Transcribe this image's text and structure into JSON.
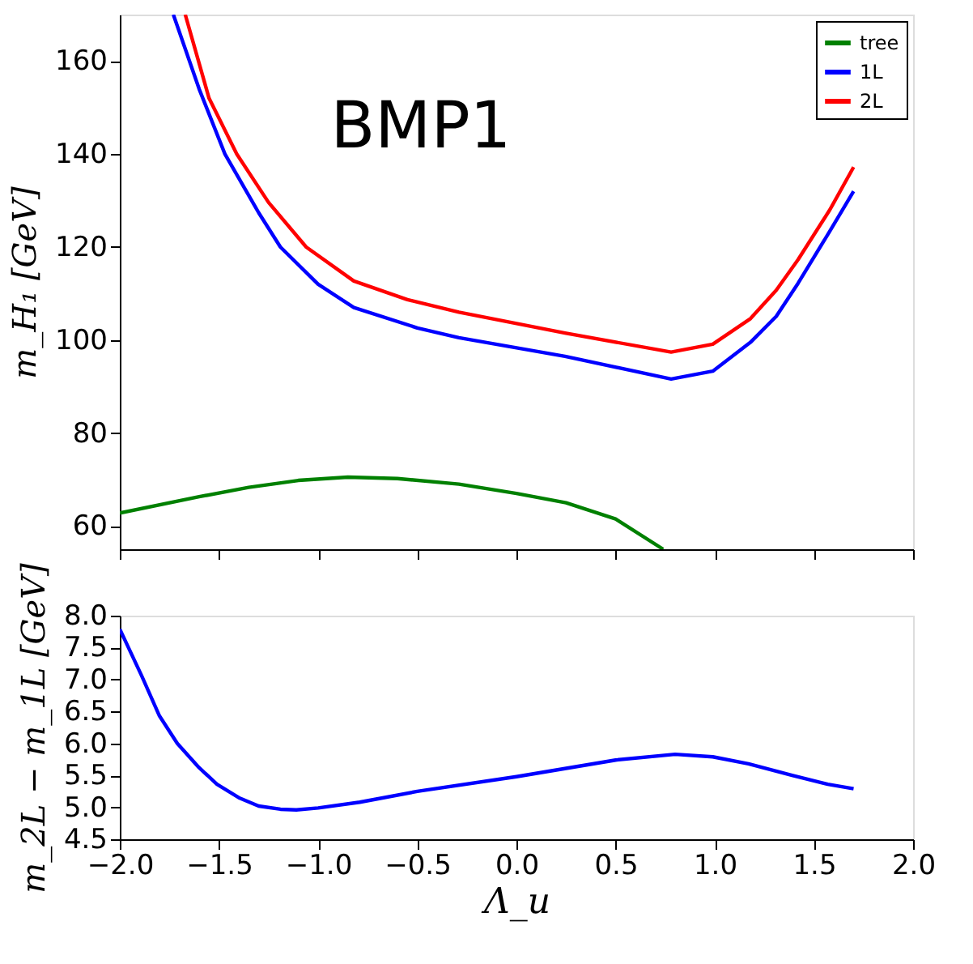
{
  "chart_data": [
    {
      "type": "line",
      "annotations": [
        "BMP1"
      ],
      "ylabel": "m_H₁ [GeV]",
      "legend": "top right",
      "grid": false,
      "tick_labels": "y",
      "xlim": [
        -2,
        2
      ],
      "ylim": [
        55,
        170
      ],
      "xticks": [
        {
          "value": -2,
          "label": null
        },
        {
          "value": -1.5,
          "label": null
        },
        {
          "value": -1,
          "label": null
        },
        {
          "value": -0.5,
          "label": null
        },
        {
          "value": 0,
          "label": null
        },
        {
          "value": 0.5,
          "label": null
        },
        {
          "value": 1,
          "label": null
        },
        {
          "value": 1.5,
          "label": null
        },
        {
          "value": 2,
          "label": null
        }
      ],
      "yticks": [
        60,
        80,
        100,
        120,
        140,
        160
      ],
      "series": [
        {
          "name": "tree",
          "color": "#008000",
          "x": [
            -2,
            -1.6,
            -1.35,
            -1.1,
            -0.85,
            -0.6,
            -0.29,
            0,
            0.25,
            0.5,
            0.74
          ],
          "values": [
            62.8,
            66.3,
            68.3,
            69.8,
            70.5,
            70.2,
            69,
            67,
            65,
            61.5,
            55
          ]
        },
        {
          "name": "1L",
          "color": "#0000ff",
          "x": [
            -1.73,
            -1.6,
            -1.47,
            -1.3,
            -1.19,
            -1,
            -0.82,
            -0.5,
            -0.29,
            0.245,
            0.78,
            0.99,
            1.18,
            1.31,
            1.42,
            1.58,
            1.7
          ],
          "values": [
            170,
            154,
            140,
            127.4,
            120,
            112,
            107,
            102.6,
            100.5,
            96.5,
            91.6,
            93.3,
            99.5,
            105.1,
            112.2,
            123.4,
            132
          ]
        },
        {
          "name": "2L",
          "color": "#ff0000",
          "x": [
            -1.67,
            -1.55,
            -1.41,
            -1.25,
            -1.06,
            -0.82,
            -0.55,
            -0.29,
            0.245,
            0.78,
            0.99,
            1.18,
            1.31,
            1.42,
            1.58,
            1.7
          ],
          "values": [
            170,
            152,
            140,
            129.6,
            120,
            112.7,
            108.7,
            106,
            101.5,
            97.4,
            99.1,
            104.6,
            110.7,
            117.3,
            128,
            137.2
          ]
        }
      ]
    },
    {
      "type": "line",
      "xlabel": "Λ_u",
      "ylabel": "m_2L − m_1L [GeV]",
      "grid": false,
      "legend": false,
      "xlim": [
        -2,
        2
      ],
      "ylim": [
        4.5,
        8
      ],
      "xticks": [
        {
          "value": -2,
          "label": "−2.0"
        },
        {
          "value": -1.5,
          "label": "−1.5"
        },
        {
          "value": -1,
          "label": "−1.0"
        },
        {
          "value": -0.5,
          "label": "−0.5"
        },
        {
          "value": 0,
          "label": "0.0"
        },
        {
          "value": 0.5,
          "label": "0.5"
        },
        {
          "value": 1,
          "label": "1.0"
        },
        {
          "value": 1.5,
          "label": "1.5"
        },
        {
          "value": 2,
          "label": "2.0"
        }
      ],
      "yticks": [
        {
          "value": 4.5,
          "label": "4.5"
        },
        {
          "value": 5,
          "label": "5.0"
        },
        {
          "value": 5.5,
          "label": "5.5"
        },
        {
          "value": 6,
          "label": "6.0"
        },
        {
          "value": 6.5,
          "label": "6.5"
        },
        {
          "value": 7,
          "label": "7.0"
        },
        {
          "value": 7.5,
          "label": "7.5"
        },
        {
          "value": 8,
          "label": "8.0"
        }
      ],
      "series": [
        {
          "color": "#0000ff",
          "x": [
            -2,
            -1.89,
            -1.8,
            -1.71,
            -1.6,
            -1.51,
            -1.4,
            -1.3,
            -1.19,
            -1.11,
            -1,
            -0.79,
            -0.5,
            0,
            0.5,
            0.8,
            0.99,
            1.17,
            1.39,
            1.57,
            1.7
          ],
          "values": [
            7.79,
            7.06,
            6.43,
            6.0,
            5.62,
            5.36,
            5.15,
            5.02,
            4.97,
            4.96,
            4.99,
            5.08,
            5.25,
            5.48,
            5.74,
            5.83,
            5.79,
            5.68,
            5.5,
            5.36,
            5.29
          ]
        }
      ]
    }
  ]
}
